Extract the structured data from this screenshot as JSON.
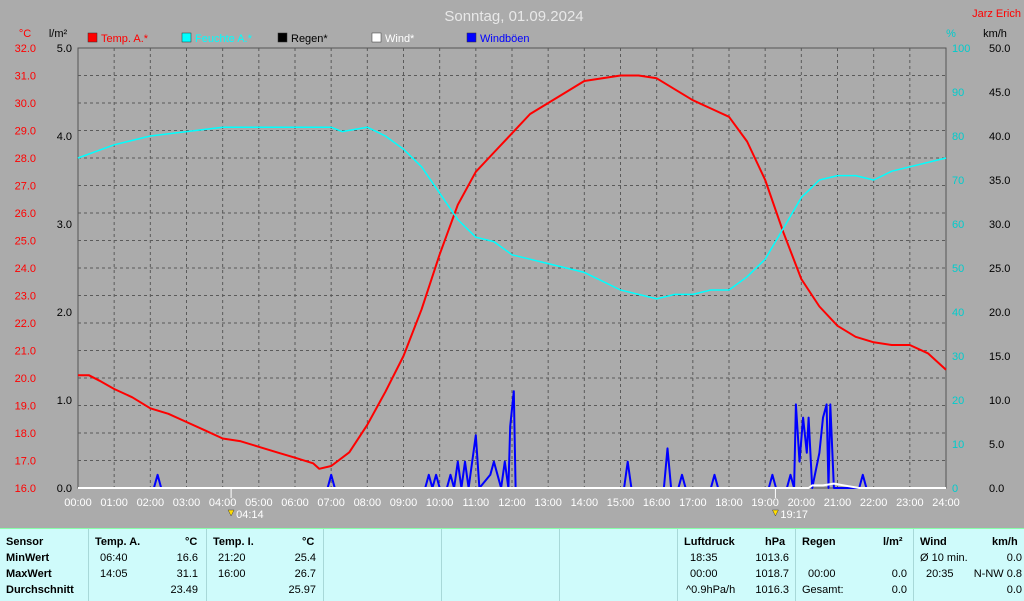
{
  "header": {
    "title": "Sonntag, 01.09.2024",
    "author": "Jarz Erich"
  },
  "legend": [
    {
      "label": "Temp. A.*",
      "color": "#ff0000"
    },
    {
      "label": "Feuchte A.*",
      "color": "#00ffff"
    },
    {
      "label": "Regen*",
      "color": "#000000"
    },
    {
      "label": "Wind*",
      "color": "#ffffff"
    },
    {
      "label": "Windböen",
      "color": "#0000ff"
    }
  ],
  "axes": {
    "temp_unit": "°C",
    "rain_unit": "l/m²",
    "hum_unit": "%",
    "wind_unit": "km/h"
  },
  "sun": {
    "rise": "04:14",
    "set": "19:17"
  },
  "chart_data": {
    "type": "line",
    "x_ticks": [
      "00:00",
      "01:00",
      "02:00",
      "03:00",
      "04:00",
      "05:00",
      "06:00",
      "07:00",
      "08:00",
      "09:00",
      "10:00",
      "11:00",
      "12:00",
      "13:00",
      "14:00",
      "15:00",
      "16:00",
      "17:00",
      "18:00",
      "19:00",
      "20:00",
      "21:00",
      "22:00",
      "23:00",
      "24:00"
    ],
    "temp_axis": {
      "label": "°C",
      "range": [
        16,
        32
      ],
      "ticks": [
        "16.0",
        "17.0",
        "18.0",
        "19.0",
        "20.0",
        "21.0",
        "22.0",
        "23.0",
        "24.0",
        "25.0",
        "26.0",
        "27.0",
        "28.0",
        "29.0",
        "30.0",
        "31.0",
        "32.0"
      ],
      "color": "#ff0000"
    },
    "rain_axis": {
      "label": "l/m²",
      "range": [
        0,
        5
      ],
      "ticks": [
        "0.0",
        "1.0",
        "2.0",
        "3.0",
        "4.0",
        "5.0"
      ]
    },
    "hum_axis": {
      "label": "%",
      "range": [
        0,
        100
      ],
      "ticks": [
        "0",
        "10",
        "20",
        "30",
        "40",
        "50",
        "60",
        "70",
        "80",
        "90",
        "100"
      ],
      "color": "#00cccc"
    },
    "wind_axis": {
      "label": "km/h",
      "range": [
        0,
        50
      ],
      "ticks": [
        "0.0",
        "5.0",
        "10.0",
        "15.0",
        "20.0",
        "25.0",
        "30.0",
        "35.0",
        "40.0",
        "45.0",
        "50.0"
      ]
    },
    "series": [
      {
        "name": "Temp. A.*",
        "axis": "temp",
        "color": "#ff0000",
        "points": [
          [
            0,
            20.1
          ],
          [
            0.3,
            20.1
          ],
          [
            0.6,
            19.9
          ],
          [
            1,
            19.6
          ],
          [
            1.5,
            19.3
          ],
          [
            2,
            18.9
          ],
          [
            2.5,
            18.7
          ],
          [
            3,
            18.4
          ],
          [
            3.5,
            18.1
          ],
          [
            4,
            17.8
          ],
          [
            4.5,
            17.7
          ],
          [
            5,
            17.5
          ],
          [
            5.5,
            17.3
          ],
          [
            6,
            17.1
          ],
          [
            6.5,
            16.9
          ],
          [
            6.67,
            16.7
          ],
          [
            7,
            16.8
          ],
          [
            7.5,
            17.3
          ],
          [
            8,
            18.3
          ],
          [
            8.5,
            19.5
          ],
          [
            9,
            20.8
          ],
          [
            9.5,
            22.5
          ],
          [
            10,
            24.5
          ],
          [
            10.5,
            26.3
          ],
          [
            11,
            27.5
          ],
          [
            11.5,
            28.2
          ],
          [
            12,
            28.9
          ],
          [
            12.5,
            29.6
          ],
          [
            13,
            30.0
          ],
          [
            13.5,
            30.4
          ],
          [
            14,
            30.8
          ],
          [
            14.5,
            30.9
          ],
          [
            15,
            31.0
          ],
          [
            15.5,
            31.0
          ],
          [
            16,
            30.9
          ],
          [
            16.5,
            30.5
          ],
          [
            17,
            30.1
          ],
          [
            17.5,
            29.8
          ],
          [
            18,
            29.5
          ],
          [
            18.5,
            28.6
          ],
          [
            19,
            27.2
          ],
          [
            19.5,
            25.3
          ],
          [
            20,
            23.6
          ],
          [
            20.5,
            22.6
          ],
          [
            21,
            21.9
          ],
          [
            21.5,
            21.5
          ],
          [
            22,
            21.3
          ],
          [
            22.5,
            21.2
          ],
          [
            23,
            21.2
          ],
          [
            23.5,
            20.9
          ],
          [
            24,
            20.3
          ]
        ]
      },
      {
        "name": "Feuchte A.*",
        "axis": "hum",
        "color": "#00ffff",
        "points": [
          [
            0,
            75
          ],
          [
            1,
            78
          ],
          [
            2,
            80
          ],
          [
            3,
            81
          ],
          [
            4,
            82
          ],
          [
            5,
            82
          ],
          [
            6,
            82
          ],
          [
            7,
            82
          ],
          [
            7.3,
            81
          ],
          [
            8,
            82
          ],
          [
            8.5,
            80
          ],
          [
            9,
            77
          ],
          [
            9.5,
            73
          ],
          [
            10,
            67
          ],
          [
            10.5,
            61
          ],
          [
            11,
            57
          ],
          [
            11.5,
            56
          ],
          [
            12,
            53
          ],
          [
            12.5,
            52
          ],
          [
            13,
            51
          ],
          [
            13.5,
            50
          ],
          [
            14,
            49
          ],
          [
            14.5,
            47
          ],
          [
            15,
            45
          ],
          [
            15.5,
            44
          ],
          [
            16,
            43
          ],
          [
            16.5,
            44
          ],
          [
            17,
            44
          ],
          [
            17.5,
            45
          ],
          [
            18,
            45
          ],
          [
            18.5,
            48
          ],
          [
            19,
            52
          ],
          [
            19.5,
            59
          ],
          [
            20,
            66
          ],
          [
            20.5,
            70
          ],
          [
            21,
            71
          ],
          [
            21.5,
            71
          ],
          [
            22,
            70
          ],
          [
            22.5,
            72
          ],
          [
            23,
            73
          ],
          [
            24,
            75
          ]
        ]
      },
      {
        "name": "Windböen",
        "axis": "wind",
        "color": "#0000ff",
        "points": [
          [
            0,
            0
          ],
          [
            2.1,
            0
          ],
          [
            2.2,
            1.5
          ],
          [
            2.3,
            0
          ],
          [
            6.9,
            0
          ],
          [
            7,
            1.5
          ],
          [
            7.1,
            0
          ],
          [
            9.6,
            0
          ],
          [
            9.7,
            1.5
          ],
          [
            9.8,
            0
          ],
          [
            9.9,
            1.5
          ],
          [
            10,
            0
          ],
          [
            10.2,
            0
          ],
          [
            10.3,
            1.5
          ],
          [
            10.4,
            0
          ],
          [
            10.5,
            3
          ],
          [
            10.6,
            0
          ],
          [
            10.7,
            3
          ],
          [
            10.8,
            0
          ],
          [
            10.9,
            3
          ],
          [
            11,
            6
          ],
          [
            11.1,
            0
          ],
          [
            11.4,
            1.5
          ],
          [
            11.5,
            3
          ],
          [
            11.6,
            1.5
          ],
          [
            11.7,
            0
          ],
          [
            11.8,
            3
          ],
          [
            11.9,
            0
          ],
          [
            11.95,
            7
          ],
          [
            12.05,
            11
          ],
          [
            12.1,
            0
          ],
          [
            15.1,
            0
          ],
          [
            15.2,
            3
          ],
          [
            15.3,
            0
          ],
          [
            16.2,
            0
          ],
          [
            16.3,
            4.5
          ],
          [
            16.4,
            0
          ],
          [
            16.6,
            0
          ],
          [
            16.7,
            1.5
          ],
          [
            16.8,
            0
          ],
          [
            17.5,
            0
          ],
          [
            17.6,
            1.5
          ],
          [
            17.7,
            0
          ],
          [
            19.1,
            0
          ],
          [
            19.2,
            1.5
          ],
          [
            19.3,
            0
          ],
          [
            19.6,
            0
          ],
          [
            19.7,
            1.5
          ],
          [
            19.8,
            0
          ],
          [
            19.85,
            9.5
          ],
          [
            19.95,
            3
          ],
          [
            20.05,
            8
          ],
          [
            20.15,
            4
          ],
          [
            20.2,
            8
          ],
          [
            20.3,
            0
          ],
          [
            20.5,
            4
          ],
          [
            20.6,
            8
          ],
          [
            20.7,
            9.5
          ],
          [
            20.75,
            0
          ],
          [
            20.8,
            9.5
          ],
          [
            20.9,
            0
          ],
          [
            21.6,
            0
          ],
          [
            21.7,
            1.5
          ],
          [
            21.8,
            0
          ],
          [
            24,
            0
          ]
        ]
      },
      {
        "name": "Wind*",
        "axis": "wind",
        "color": "#ffffff",
        "points": [
          [
            0,
            0
          ],
          [
            20.2,
            0
          ],
          [
            20.3,
            0.3
          ],
          [
            20.6,
            0.3
          ],
          [
            20.9,
            0.5
          ],
          [
            21.3,
            0.2
          ],
          [
            21.6,
            0
          ],
          [
            24,
            0
          ]
        ]
      }
    ]
  },
  "stats": {
    "sensor": {
      "header": "Sensor",
      "rows": [
        "MinWert",
        "MaxWert",
        "Durchschnitt"
      ]
    },
    "temp_a": {
      "header": "Temp. A.",
      "unit": "°C",
      "rows": [
        [
          "06:40",
          "16.6"
        ],
        [
          "14:05",
          "31.1"
        ],
        [
          "",
          "23.49"
        ]
      ]
    },
    "temp_i": {
      "header": "Temp. I.",
      "unit": "°C",
      "rows": [
        [
          "21:20",
          "25.4"
        ],
        [
          "16:00",
          "26.7"
        ],
        [
          "",
          "25.97"
        ]
      ]
    },
    "pressure": {
      "header": "Luftdruck",
      "unit": "hPa",
      "rows": [
        [
          "18:35",
          "1013.6"
        ],
        [
          "00:00",
          "1018.7"
        ],
        [
          "^0.9hPa/h",
          "1016.3"
        ]
      ]
    },
    "rain": {
      "header": "Regen",
      "unit": "l/m²",
      "rows": [
        [
          "",
          ""
        ],
        [
          "00:00",
          "0.0"
        ],
        [
          "Gesamt:",
          "0.0"
        ]
      ]
    },
    "wind": {
      "header": "Wind",
      "unit": "km/h",
      "rows": [
        [
          "Ø 10 min.",
          "0.0"
        ],
        [
          "20:35",
          "N-NW 0.8"
        ],
        [
          "",
          "0.0"
        ]
      ]
    }
  }
}
